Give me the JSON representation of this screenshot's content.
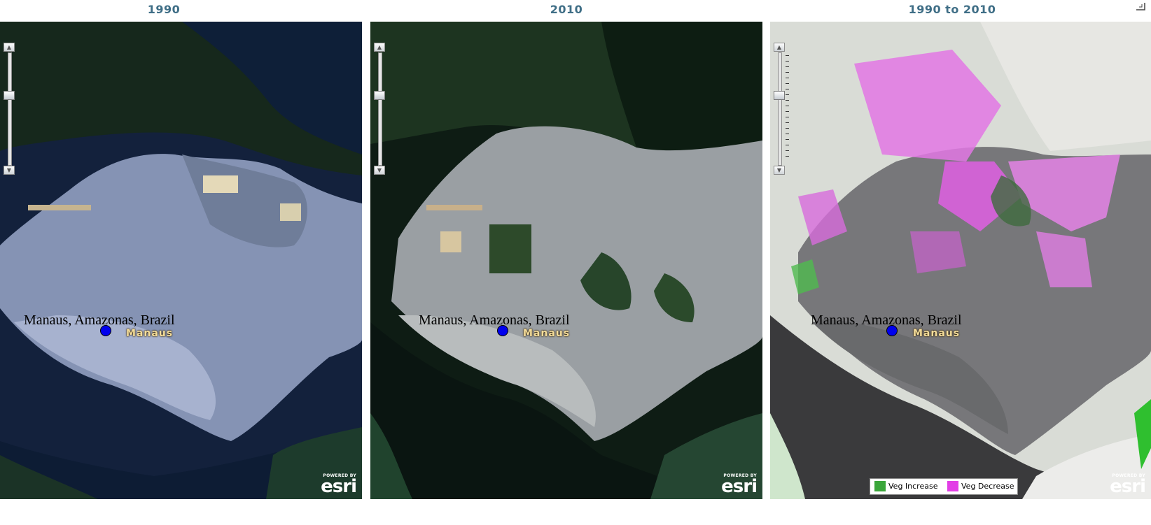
{
  "panels": [
    {
      "title": "1990",
      "city_label": "Manaus, Amazonas, Brazil",
      "place_label": "Manaus",
      "attribution": {
        "powered": "POWERED BY",
        "brand": "esri"
      }
    },
    {
      "title": "2010",
      "city_label": "Manaus, Amazonas, Brazil",
      "place_label": "Manaus",
      "attribution": {
        "powered": "POWERED BY",
        "brand": "esri"
      }
    },
    {
      "title": "1990 to 2010",
      "city_label": "Manaus, Amazonas, Brazil",
      "place_label": "Manaus",
      "attribution": {
        "powered": "POWERED BY",
        "brand": "esri"
      }
    }
  ],
  "legend": {
    "items": [
      {
        "label": "Veg Increase",
        "color": "#3aa63a"
      },
      {
        "label": "Veg Decrease",
        "color": "#e23ee6"
      }
    ]
  },
  "colors": {
    "title": "#3f6e86",
    "marker": "#0000ee",
    "place_label": "#f4dd9a"
  },
  "icons": [
    "zoom-in-icon",
    "zoom-out-icon",
    "zoom-slider-thumb",
    "location-marker-icon",
    "window-corner-icon"
  ]
}
